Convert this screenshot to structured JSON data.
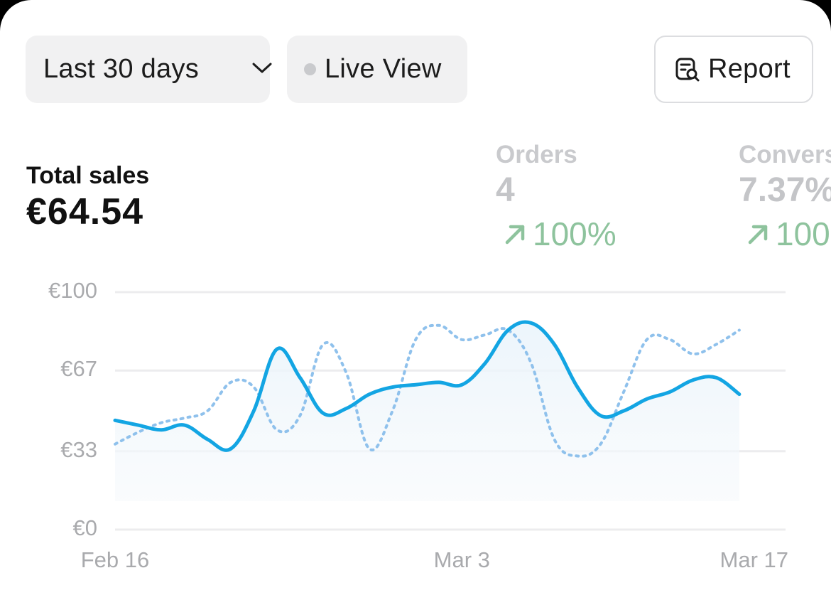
{
  "toolbar": {
    "range_label": "Last 30 days",
    "live_label": "Live View",
    "report_label": "Report"
  },
  "metrics": {
    "total_sales": {
      "label": "Total sales",
      "value": "€64.54"
    },
    "orders": {
      "label": "Orders",
      "value": "4",
      "change": "100%"
    },
    "conversion": {
      "label": "Convers",
      "value": "7.37%",
      "change": "100"
    }
  },
  "colors": {
    "primary_line": "#13a5e3",
    "comparison_line": "#8fc1ec",
    "positive_change": "#8ec39d",
    "muted_text": "#a9aaad"
  },
  "chart_data": {
    "type": "line",
    "title": "",
    "ylim": [
      0,
      100
    ],
    "y_ticks": [
      {
        "label": "€100",
        "value": 100
      },
      {
        "label": "€67",
        "value": 67
      },
      {
        "label": "€33",
        "value": 33
      },
      {
        "label": "€0",
        "value": 0
      }
    ],
    "x_ticks": [
      {
        "label": "Feb 16",
        "day": 0
      },
      {
        "label": "Mar 3",
        "day": 15
      },
      {
        "label": "Mar 17",
        "day": 29
      }
    ],
    "grid": true,
    "series": [
      {
        "style": "solid",
        "points": [
          [
            0,
            46
          ],
          [
            1,
            44
          ],
          [
            2,
            42
          ],
          [
            3,
            44
          ],
          [
            4,
            38
          ],
          [
            5,
            34
          ],
          [
            6,
            50
          ],
          [
            7,
            76
          ],
          [
            8,
            64
          ],
          [
            9,
            49
          ],
          [
            10,
            51
          ],
          [
            11,
            57
          ],
          [
            12,
            60
          ],
          [
            13,
            61
          ],
          [
            14,
            62
          ],
          [
            15,
            61
          ],
          [
            16,
            70
          ],
          [
            17,
            84
          ],
          [
            18,
            87
          ],
          [
            19,
            78
          ],
          [
            20,
            60
          ],
          [
            21,
            48
          ],
          [
            22,
            50
          ],
          [
            23,
            55
          ],
          [
            24,
            58
          ],
          [
            25,
            63
          ],
          [
            26,
            64
          ],
          [
            27,
            57
          ]
        ]
      },
      {
        "style": "dotted",
        "points": [
          [
            0,
            36
          ],
          [
            1,
            41
          ],
          [
            2,
            45
          ],
          [
            3,
            47
          ],
          [
            4,
            50
          ],
          [
            5,
            62
          ],
          [
            6,
            60
          ],
          [
            7,
            42
          ],
          [
            8,
            48
          ],
          [
            9,
            78
          ],
          [
            10,
            66
          ],
          [
            11,
            34
          ],
          [
            12,
            50
          ],
          [
            13,
            80
          ],
          [
            14,
            86
          ],
          [
            15,
            80
          ],
          [
            16,
            82
          ],
          [
            17,
            84
          ],
          [
            18,
            70
          ],
          [
            19,
            38
          ],
          [
            20,
            31
          ],
          [
            21,
            36
          ],
          [
            22,
            58
          ],
          [
            23,
            80
          ],
          [
            24,
            80
          ],
          [
            25,
            74
          ],
          [
            26,
            78
          ],
          [
            27,
            84
          ]
        ]
      }
    ]
  }
}
